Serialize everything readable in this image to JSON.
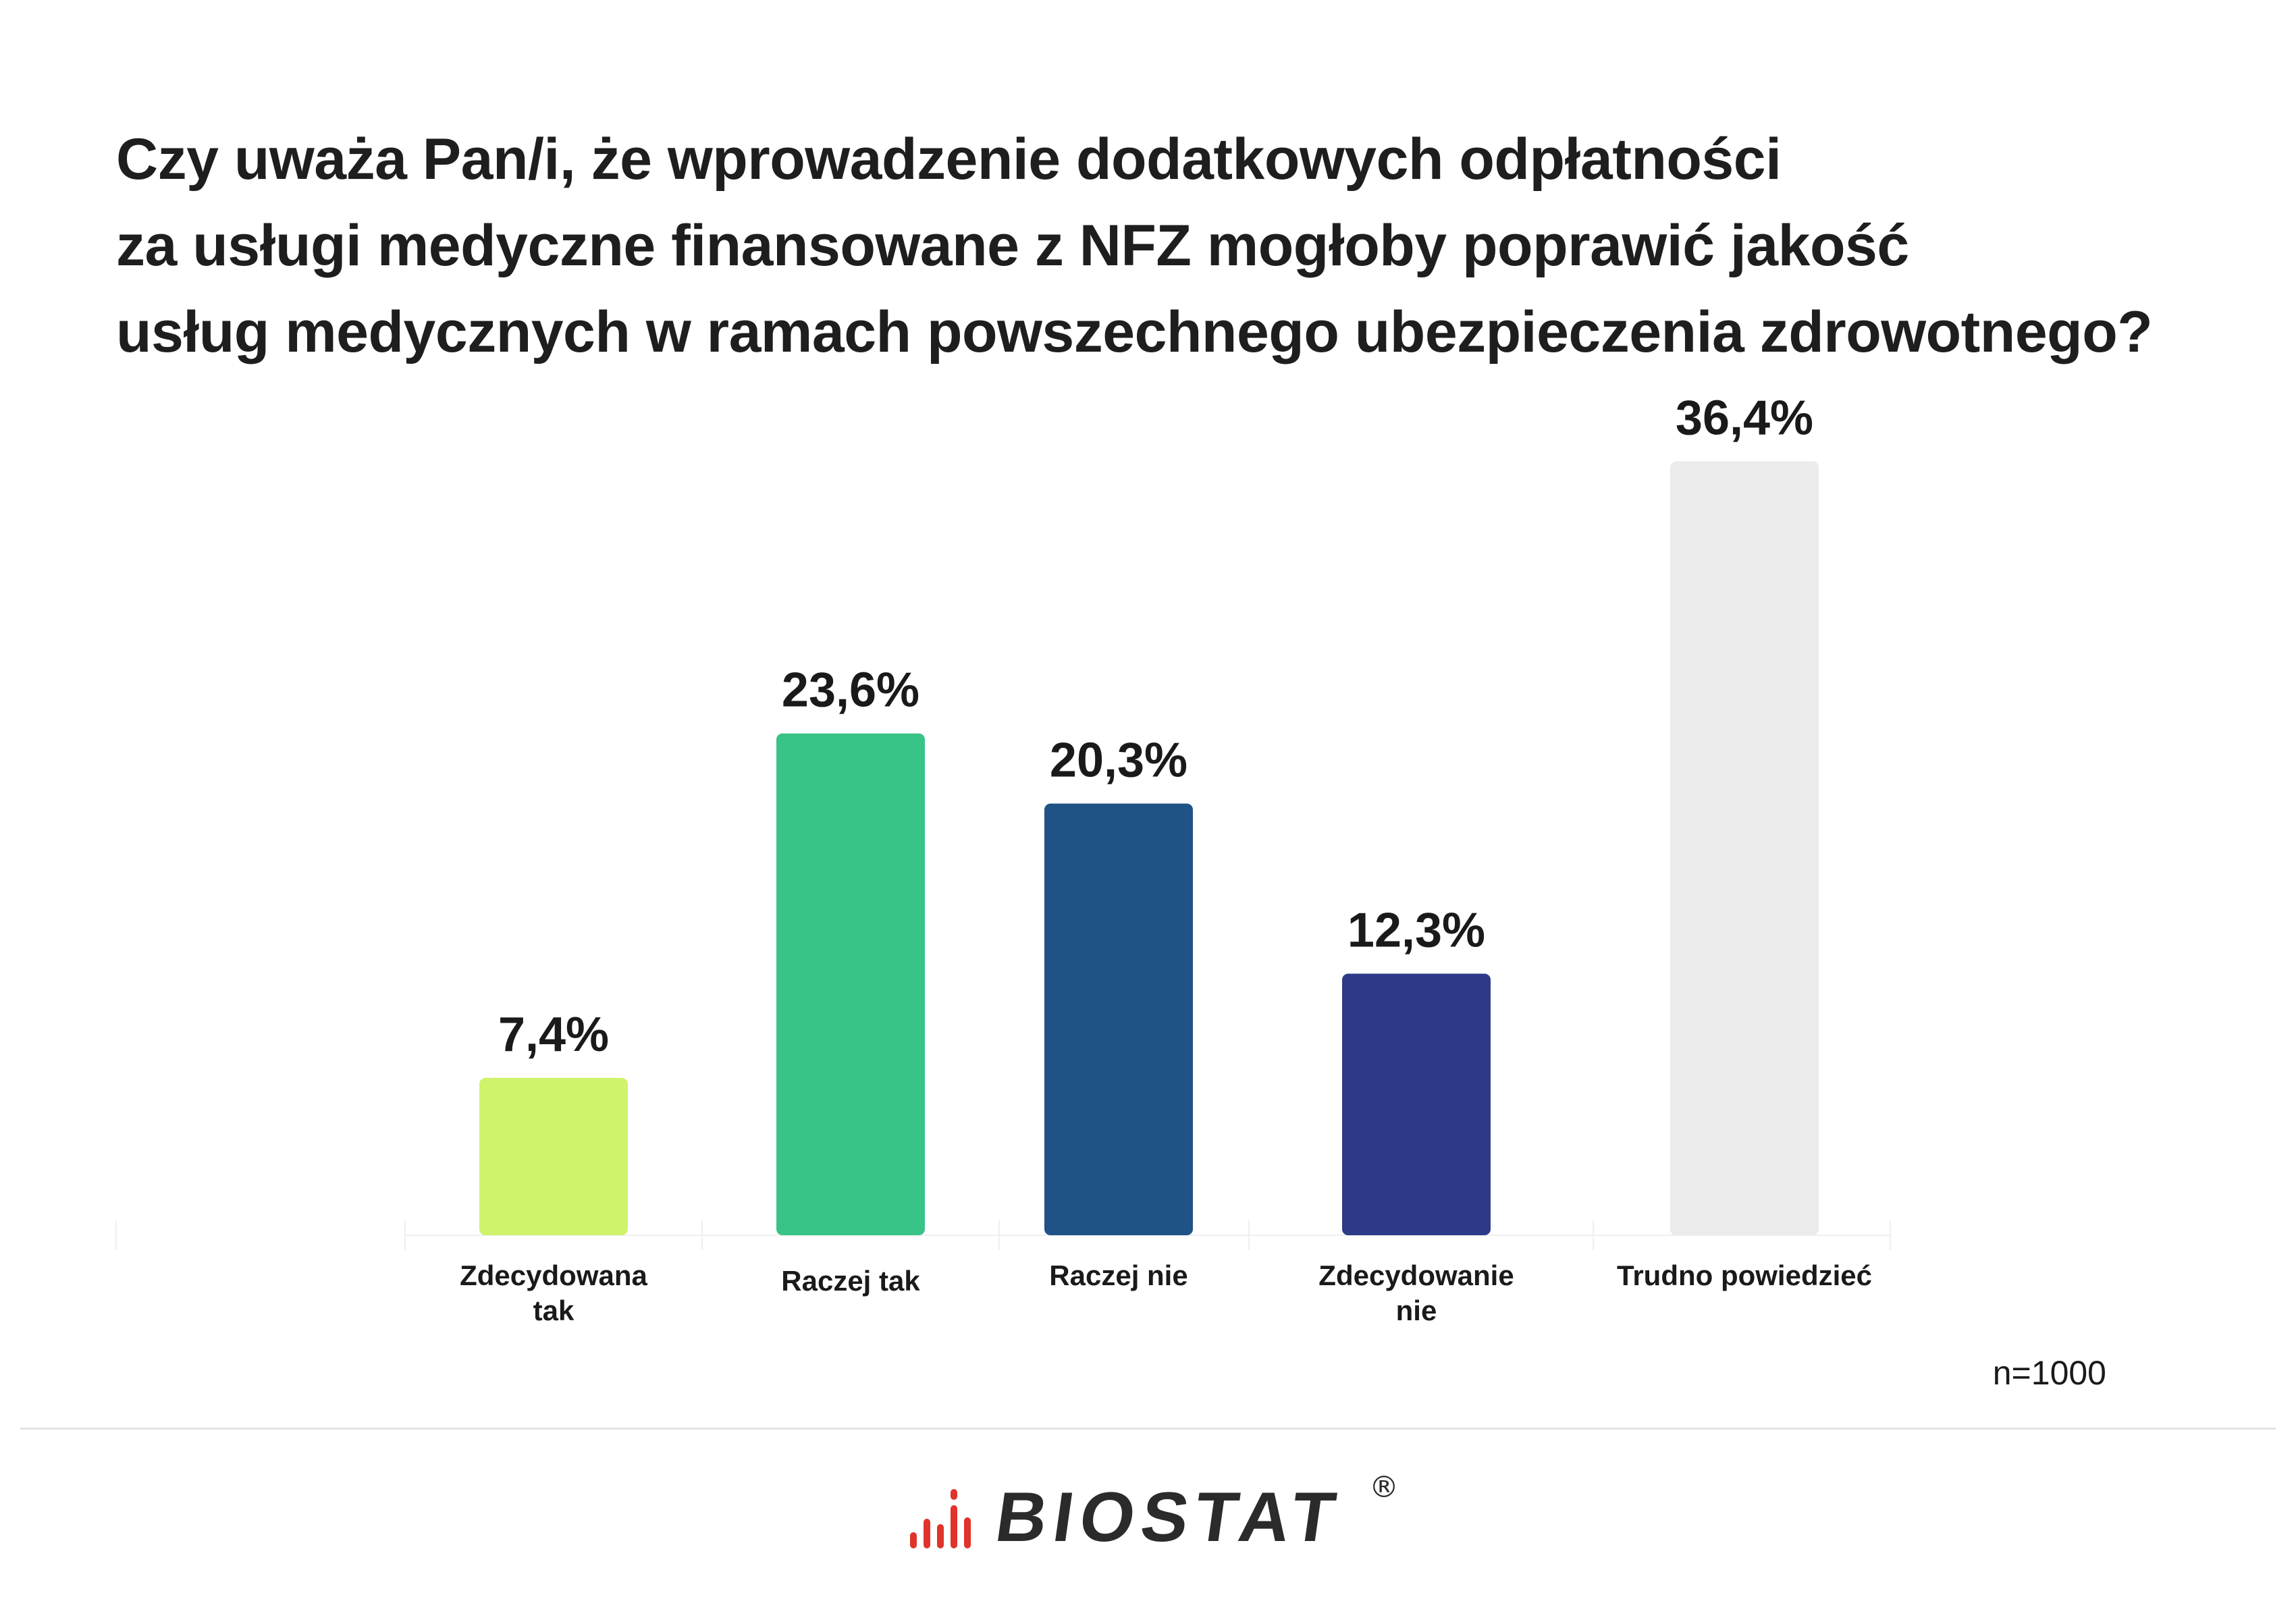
{
  "title_lines": [
    "Czy uważa Pan/i, że wprowadzenie dodatkowych odpłatności",
    "za usługi medyczne finansowane z NFZ mogłoby poprawić jakość",
    "usług medycznych w ramach powszechnego ubezpieczenia zdrowotnego?"
  ],
  "sample_note": "n=1000",
  "logo": {
    "text": "BIOSTAT",
    "registered": "®",
    "bar_colors": [
      "#e0332b"
    ]
  },
  "chart_data": {
    "type": "bar",
    "title": "Czy uważa Pan/i, że wprowadzenie dodatkowych odpłatności za usługi medyczne finansowane z NFZ mogłoby poprawić jakość usług medycznych w ramach powszechnego ubezpieczenia zdrowotnego?",
    "categories": [
      [
        "Zdecydowana",
        "tak"
      ],
      [
        "Raczej tak"
      ],
      [
        "Raczej nie"
      ],
      [
        "Zdecydowanie",
        "nie"
      ],
      [
        "Trudno powiedzieć"
      ]
    ],
    "values": [
      7.4,
      23.6,
      20.3,
      12.3,
      36.4
    ],
    "value_labels": [
      "7,4%",
      "23,6%",
      "20,3%",
      "12,3%",
      "36,4%"
    ],
    "colors": [
      "#cff36b",
      "#38c387",
      "#1f5286",
      "#2d3a87",
      "#ebebeb"
    ],
    "unit": "%",
    "grid": false,
    "legend": "none"
  }
}
